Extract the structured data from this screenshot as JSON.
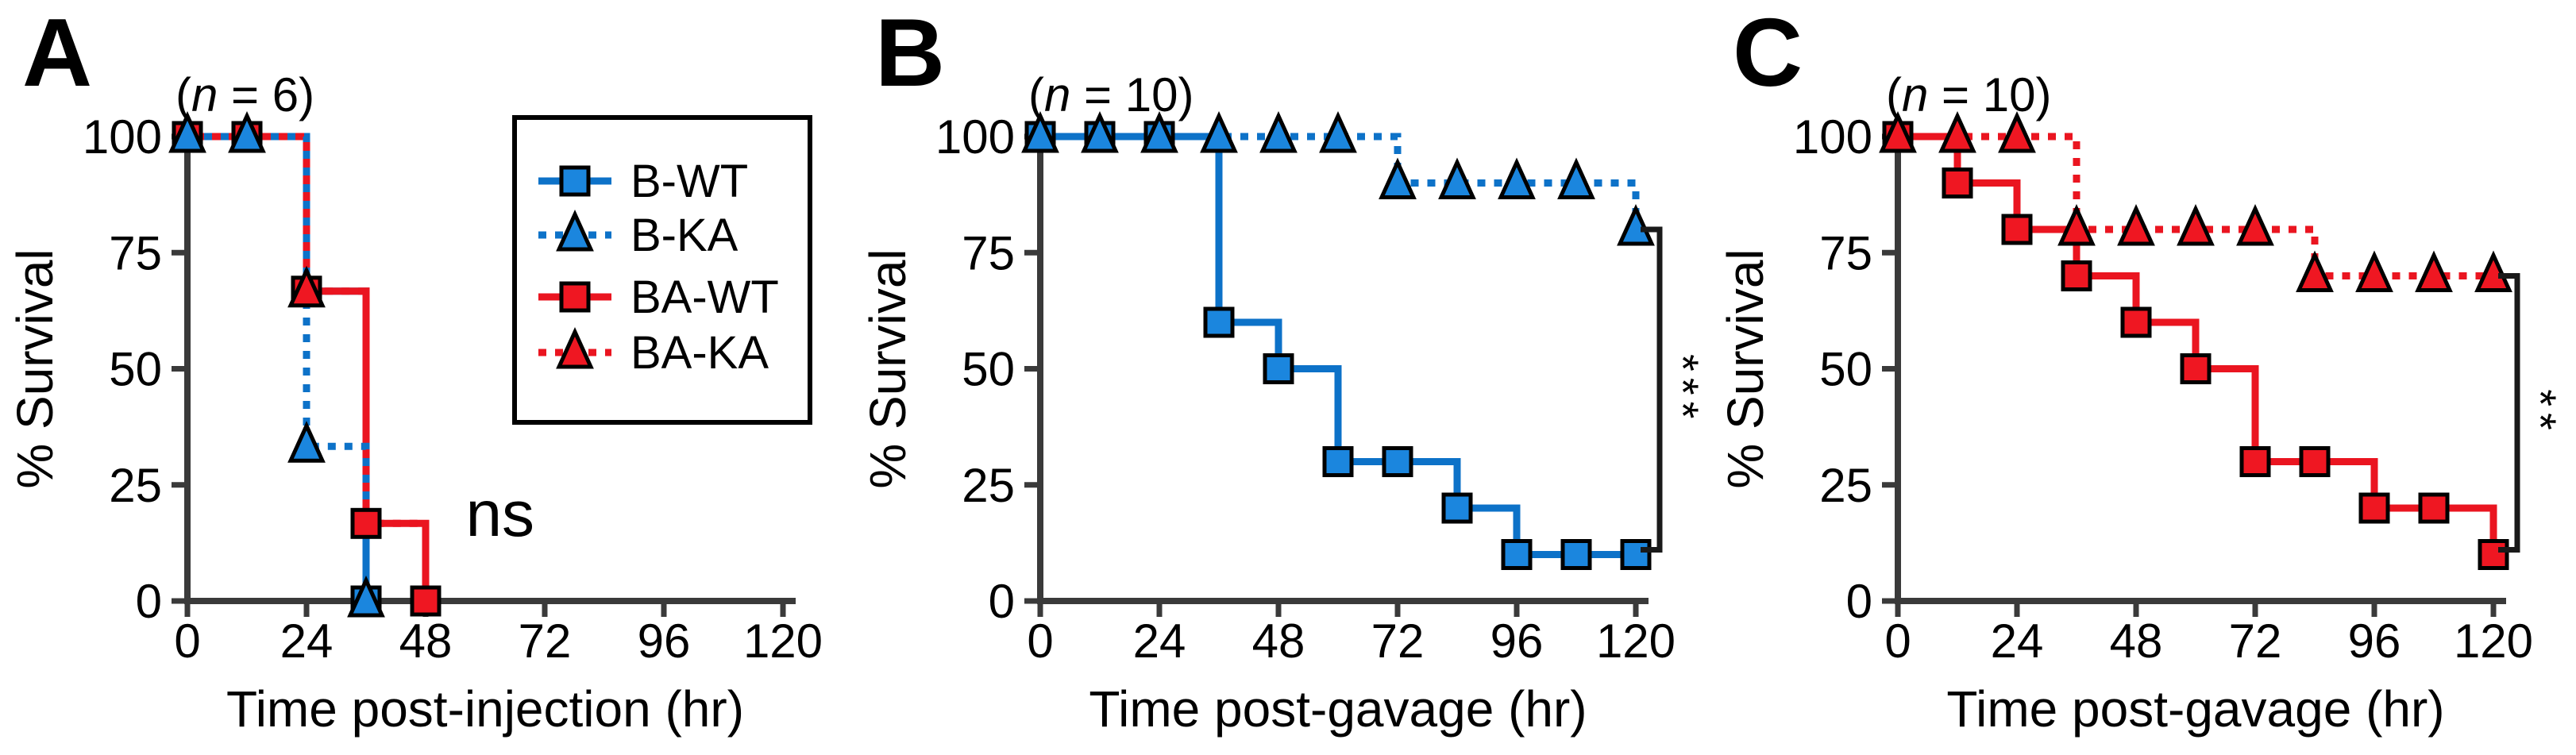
{
  "figure": {
    "background": "#ffffff",
    "colors": {
      "blue_line": "#0d72c8",
      "blue_fill": "#1b86de",
      "red_line": "#ea1520",
      "red_fill": "#ef1722",
      "axis": "#3a3a3a",
      "text": "#000000",
      "marker_edge": "#000000",
      "bracket": "#1a1a1a"
    },
    "legend": {
      "entries": [
        {
          "label": "B-WT",
          "color": "blue",
          "line": "solid",
          "marker": "square"
        },
        {
          "label": "B-KA",
          "color": "blue",
          "line": "dotted",
          "marker": "triangle"
        },
        {
          "label": "BA-WT",
          "color": "red",
          "line": "solid",
          "marker": "square"
        },
        {
          "label": "BA-KA",
          "color": "red",
          "line": "dotted",
          "marker": "triangle"
        }
      ]
    }
  },
  "chart_data": [
    {
      "type": "line",
      "subtype": "kaplan-meier-step",
      "panel_letter": "A",
      "n_label": "(n = 6)",
      "n_open": "(",
      "n_var": "n",
      "n_rest": " = 6)",
      "xlabel": "Time post-injection (hr)",
      "ylabel": "% Survival",
      "xticks": [
        0,
        24,
        48,
        72,
        96,
        120
      ],
      "yticks": [
        0,
        25,
        50,
        75,
        100
      ],
      "xlim": [
        0,
        120
      ],
      "ylim": [
        0,
        100
      ],
      "grid": false,
      "significance": {
        "label": "ns",
        "style": "text",
        "x_hr": 63,
        "y_pct": 14
      },
      "series": [
        {
          "name": "B-WT",
          "color": "blue",
          "line": "solid",
          "marker": "square",
          "path": [
            [
              0,
              100
            ],
            [
              24,
              100
            ],
            [
              24,
              66.7
            ],
            [
              36,
              66.7
            ],
            [
              36,
              0
            ]
          ],
          "markers": [
            [
              0,
              100
            ],
            [
              12,
              100
            ],
            [
              36,
              0
            ]
          ]
        },
        {
          "name": "BA-WT",
          "color": "red",
          "line": "solid",
          "marker": "square",
          "path": [
            [
              0,
              100
            ],
            [
              24,
              100
            ],
            [
              24,
              66.7
            ],
            [
              36,
              66.7
            ],
            [
              36,
              16.7
            ],
            [
              48,
              16.7
            ],
            [
              48,
              0
            ]
          ],
          "markers": [
            [
              0,
              100
            ],
            [
              12,
              100
            ],
            [
              24,
              66.7
            ],
            [
              36,
              16.7
            ],
            [
              48,
              0
            ]
          ]
        },
        {
          "name": "BA-KA",
          "color": "red",
          "line": "dotted",
          "marker": "triangle",
          "dash_offset": 10,
          "path": [
            [
              0,
              100
            ],
            [
              24,
              100
            ],
            [
              24,
              66.7
            ],
            [
              36,
              66.7
            ],
            [
              36,
              16.7
            ],
            [
              48,
              16.7
            ],
            [
              48,
              0
            ]
          ],
          "markers": [
            [
              24,
              66.7
            ]
          ]
        },
        {
          "name": "B-KA",
          "color": "blue",
          "line": "dotted",
          "marker": "triangle",
          "path": [
            [
              0,
              100
            ],
            [
              24,
              100
            ],
            [
              24,
              33.3
            ],
            [
              36,
              33.3
            ],
            [
              36,
              0
            ]
          ],
          "markers": [
            [
              0,
              100
            ],
            [
              12,
              100
            ],
            [
              24,
              33.3
            ],
            [
              36,
              0
            ]
          ]
        }
      ]
    },
    {
      "type": "line",
      "subtype": "kaplan-meier-step",
      "panel_letter": "B",
      "n_label": "(n = 10)",
      "n_open": "(",
      "n_var": "n",
      "n_rest": " = 10)",
      "xlabel": "Time post-gavage (hr)",
      "ylabel": "% Survival",
      "xticks": [
        0,
        24,
        48,
        72,
        96,
        120
      ],
      "yticks": [
        0,
        25,
        50,
        75,
        100
      ],
      "xlim": [
        0,
        120
      ],
      "ylim": [
        0,
        100
      ],
      "grid": false,
      "significance": {
        "label": "***",
        "style": "bracket",
        "top_pct": 80,
        "bottom_pct": 10
      },
      "series": [
        {
          "name": "B-WT",
          "color": "blue",
          "line": "solid",
          "marker": "square",
          "path": [
            [
              0,
              100
            ],
            [
              36,
              100
            ],
            [
              36,
              60
            ],
            [
              48,
              60
            ],
            [
              48,
              50
            ],
            [
              60,
              50
            ],
            [
              60,
              30
            ],
            [
              84,
              30
            ],
            [
              84,
              20
            ],
            [
              96,
              20
            ],
            [
              96,
              10
            ],
            [
              120,
              10
            ]
          ],
          "markers": [
            [
              0,
              100
            ],
            [
              12,
              100
            ],
            [
              24,
              100
            ],
            [
              36,
              60
            ],
            [
              48,
              50
            ],
            [
              60,
              30
            ],
            [
              72,
              30
            ],
            [
              84,
              20
            ],
            [
              96,
              10
            ],
            [
              108,
              10
            ],
            [
              120,
              10
            ]
          ]
        },
        {
          "name": "B-KA",
          "color": "blue",
          "line": "dotted",
          "marker": "triangle",
          "path": [
            [
              0,
              100
            ],
            [
              72,
              100
            ],
            [
              72,
              90
            ],
            [
              120,
              90
            ],
            [
              120,
              80
            ]
          ],
          "markers": [
            [
              0,
              100
            ],
            [
              12,
              100
            ],
            [
              24,
              100
            ],
            [
              36,
              100
            ],
            [
              48,
              100
            ],
            [
              60,
              100
            ],
            [
              72,
              90
            ],
            [
              84,
              90
            ],
            [
              96,
              90
            ],
            [
              108,
              90
            ],
            [
              120,
              80
            ]
          ]
        }
      ]
    },
    {
      "type": "line",
      "subtype": "kaplan-meier-step",
      "panel_letter": "C",
      "n_label": "(n = 10)",
      "n_open": "(",
      "n_var": "n",
      "n_rest": " = 10)",
      "xlabel": "Time post-gavage (hr)",
      "ylabel": "% Survival",
      "xticks": [
        0,
        24,
        48,
        72,
        96,
        120
      ],
      "yticks": [
        0,
        25,
        50,
        75,
        100
      ],
      "xlim": [
        0,
        120
      ],
      "ylim": [
        0,
        100
      ],
      "grid": false,
      "significance": {
        "label": "**",
        "style": "bracket",
        "top_pct": 70,
        "bottom_pct": 10
      },
      "series": [
        {
          "name": "BA-WT",
          "color": "red",
          "line": "solid",
          "marker": "square",
          "path": [
            [
              0,
              100
            ],
            [
              12,
              100
            ],
            [
              12,
              90
            ],
            [
              24,
              90
            ],
            [
              24,
              80
            ],
            [
              36,
              80
            ],
            [
              36,
              70
            ],
            [
              48,
              70
            ],
            [
              48,
              60
            ],
            [
              60,
              60
            ],
            [
              60,
              50
            ],
            [
              72,
              50
            ],
            [
              72,
              30
            ],
            [
              96,
              30
            ],
            [
              96,
              20
            ],
            [
              120,
              20
            ],
            [
              120,
              10
            ]
          ],
          "markers": [
            [
              0,
              100
            ],
            [
              12,
              90
            ],
            [
              24,
              80
            ],
            [
              36,
              70
            ],
            [
              48,
              60
            ],
            [
              60,
              50
            ],
            [
              72,
              30
            ],
            [
              84,
              30
            ],
            [
              96,
              20
            ],
            [
              108,
              20
            ],
            [
              120,
              10
            ]
          ]
        },
        {
          "name": "BA-KA",
          "color": "red",
          "line": "dotted",
          "marker": "triangle",
          "path": [
            [
              0,
              100
            ],
            [
              36,
              100
            ],
            [
              36,
              80
            ],
            [
              84,
              80
            ],
            [
              84,
              70
            ],
            [
              120,
              70
            ]
          ],
          "markers": [
            [
              0,
              100
            ],
            [
              12,
              100
            ],
            [
              24,
              100
            ],
            [
              36,
              80
            ],
            [
              48,
              80
            ],
            [
              60,
              80
            ],
            [
              72,
              80
            ],
            [
              84,
              70
            ],
            [
              96,
              70
            ],
            [
              108,
              70
            ],
            [
              120,
              70
            ]
          ]
        }
      ]
    }
  ]
}
